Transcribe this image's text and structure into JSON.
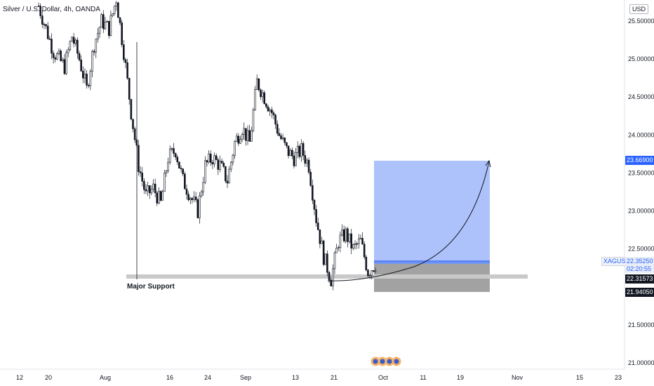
{
  "header": {
    "title": "Silver / U.S. Dollar, 4h, OANDA",
    "currency": "USD"
  },
  "price_axis": {
    "ticks": [
      "25.50000",
      "25.00000",
      "24.50000",
      "24.00000",
      "23.50000",
      "23.00000",
      "22.50000",
      "21.50000",
      "21.00000"
    ],
    "tick_values": [
      25.5,
      25.0,
      24.5,
      24.0,
      23.5,
      23.0,
      22.5,
      21.5,
      21.0
    ]
  },
  "time_axis": {
    "ticks": [
      "12",
      "20",
      "Aug",
      "16",
      "24",
      "Sep",
      "13",
      "21",
      "Oct",
      "11",
      "19",
      "Nov",
      "15",
      "23"
    ]
  },
  "price_labels": {
    "target": "23.66900",
    "symbol": "XAGUSD",
    "last": "22.35250",
    "countdown": "02:20:55",
    "entry": "22.31573",
    "stop": "21.94050"
  },
  "annotation": {
    "support_label": "Major Support"
  },
  "colors": {
    "up": "#131722",
    "down": "#131722",
    "target_zone": "#7b9cf7",
    "stop_zone": "#6e6e6e",
    "support_band": "#c9c9c9",
    "target_tag": "#2962ff",
    "dark_tag": "#131722"
  },
  "chart_data": {
    "type": "candlestick",
    "title": "Silver / U.S. Dollar, 4h, OANDA",
    "ylim": [
      21.0,
      25.75
    ],
    "support_level": 22.06,
    "position": {
      "entry": 22.31573,
      "target": 23.669,
      "stop": 21.9405
    },
    "close_path": [
      {
        "t": 0,
        "p": 25.7
      },
      {
        "t": 8,
        "p": 25.1
      },
      {
        "t": 14,
        "p": 24.9
      },
      {
        "t": 18,
        "p": 25.3
      },
      {
        "t": 22,
        "p": 25.0
      },
      {
        "t": 26,
        "p": 24.6
      },
      {
        "t": 30,
        "p": 25.2
      },
      {
        "t": 34,
        "p": 25.5
      },
      {
        "t": 38,
        "p": 25.4
      },
      {
        "t": 42,
        "p": 25.8
      },
      {
        "t": 46,
        "p": 25.1
      },
      {
        "t": 50,
        "p": 24.3
      },
      {
        "t": 54,
        "p": 23.6
      },
      {
        "t": 58,
        "p": 23.2
      },
      {
        "t": 62,
        "p": 23.3
      },
      {
        "t": 66,
        "p": 23.1
      },
      {
        "t": 70,
        "p": 23.7
      },
      {
        "t": 74,
        "p": 23.8
      },
      {
        "t": 78,
        "p": 23.4
      },
      {
        "t": 82,
        "p": 23.2
      },
      {
        "t": 86,
        "p": 23.0
      },
      {
        "t": 90,
        "p": 23.6
      },
      {
        "t": 94,
        "p": 23.7
      },
      {
        "t": 98,
        "p": 23.6
      },
      {
        "t": 102,
        "p": 23.4
      },
      {
        "t": 106,
        "p": 23.9
      },
      {
        "t": 110,
        "p": 24.1
      },
      {
        "t": 114,
        "p": 23.9
      },
      {
        "t": 118,
        "p": 24.7
      },
      {
        "t": 122,
        "p": 24.5
      },
      {
        "t": 126,
        "p": 24.3
      },
      {
        "t": 130,
        "p": 24.0
      },
      {
        "t": 134,
        "p": 23.8
      },
      {
        "t": 138,
        "p": 23.7
      },
      {
        "t": 142,
        "p": 23.8
      },
      {
        "t": 146,
        "p": 23.6
      },
      {
        "t": 150,
        "p": 22.9
      },
      {
        "t": 154,
        "p": 22.4
      },
      {
        "t": 158,
        "p": 22.1
      },
      {
        "t": 162,
        "p": 22.6
      },
      {
        "t": 166,
        "p": 22.7
      },
      {
        "t": 170,
        "p": 22.5
      },
      {
        "t": 174,
        "p": 22.6
      },
      {
        "t": 178,
        "p": 22.2
      },
      {
        "t": 182,
        "p": 22.3
      }
    ]
  }
}
